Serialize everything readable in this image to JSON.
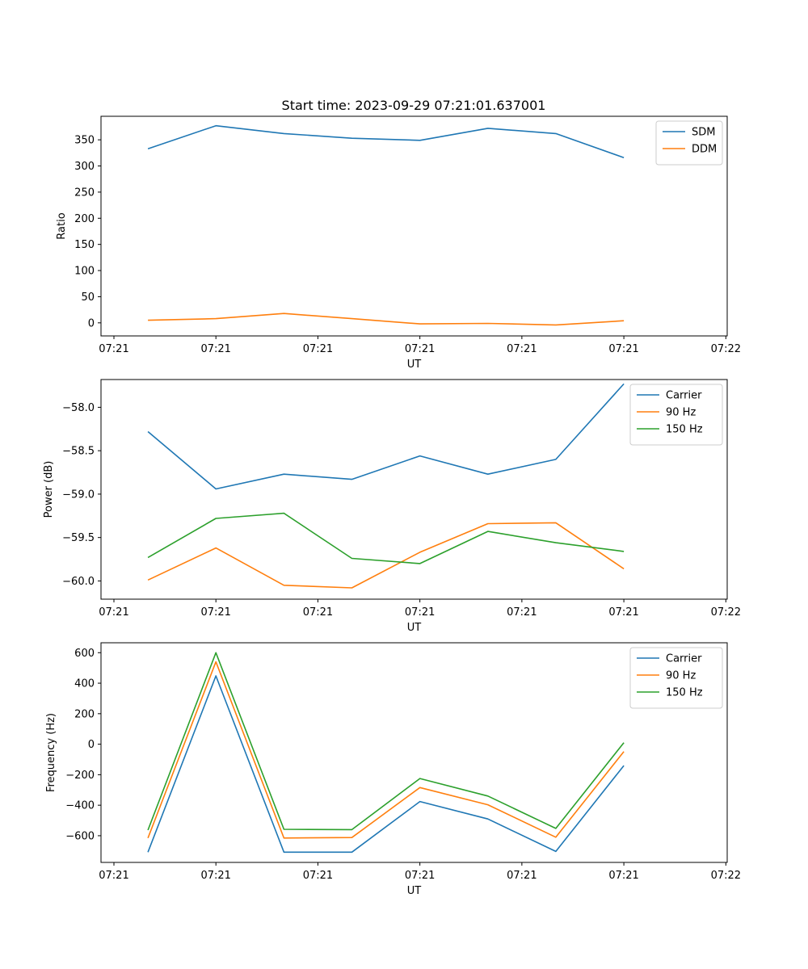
{
  "title": "Start time: 2023-09-29 07:21:01.637001",
  "chart_data": [
    {
      "type": "line",
      "xlabel": "UT",
      "ylabel": "Ratio",
      "x_ticks": [
        "07:21",
        "07:21",
        "07:21",
        "07:21",
        "07:21",
        "07:21",
        "07:22"
      ],
      "xlim": [
        -0.69,
        8.52
      ],
      "x": [
        0.0,
        1.0,
        2.0,
        3.0,
        4.0,
        5.0,
        6.0,
        7.0
      ],
      "ylim": [
        -25,
        395
      ],
      "y_ticks": [
        0,
        50,
        100,
        150,
        200,
        250,
        300,
        350
      ],
      "legend": "upper right",
      "series": [
        {
          "name": "SDM",
          "color": "#1f77b4",
          "values": [
            333,
            377,
            362,
            353,
            349,
            372,
            362,
            316
          ]
        },
        {
          "name": "DDM",
          "color": "#ff7f0e",
          "values": [
            5,
            8,
            18,
            8,
            -2,
            -1,
            -4,
            4
          ]
        }
      ]
    },
    {
      "type": "line",
      "xlabel": "UT",
      "ylabel": "Power (dB)",
      "x_ticks": [
        "07:21",
        "07:21",
        "07:21",
        "07:21",
        "07:21",
        "07:21",
        "07:22"
      ],
      "xlim": [
        -0.69,
        8.52
      ],
      "x": [
        0.0,
        1.0,
        2.0,
        3.0,
        4.0,
        5.0,
        6.0,
        7.0
      ],
      "ylim": [
        -60.21,
        -57.68
      ],
      "y_ticks": [
        -60.0,
        -59.5,
        -59.0,
        -58.5,
        -58.0
      ],
      "y_tick_labels": [
        "−60.0",
        "−59.5",
        "−59.0",
        "−58.5",
        "−58.0"
      ],
      "legend": "upper right",
      "series": [
        {
          "name": "Carrier",
          "color": "#1f77b4",
          "values": [
            -58.28,
            -58.94,
            -58.77,
            -58.83,
            -58.56,
            -58.77,
            -58.6,
            -57.73
          ]
        },
        {
          "name": "90 Hz",
          "color": "#ff7f0e",
          "values": [
            -59.99,
            -59.62,
            -60.05,
            -60.08,
            -59.67,
            -59.34,
            -59.33,
            -59.86
          ]
        },
        {
          "name": "150 Hz",
          "color": "#2ca02c",
          "values": [
            -59.73,
            -59.28,
            -59.22,
            -59.74,
            -59.8,
            -59.43,
            -59.56,
            -59.66
          ]
        }
      ]
    },
    {
      "type": "line",
      "xlabel": "UT",
      "ylabel": "Frequency (Hz)",
      "x_ticks": [
        "07:21",
        "07:21",
        "07:21",
        "07:21",
        "07:21",
        "07:21",
        "07:22"
      ],
      "xlim": [
        -0.69,
        8.52
      ],
      "x": [
        0.0,
        1.0,
        2.0,
        3.0,
        4.0,
        5.0,
        6.0,
        7.0
      ],
      "ylim": [
        -775,
        665
      ],
      "y_ticks": [
        -600,
        -400,
        -200,
        0,
        200,
        400,
        600
      ],
      "y_tick_labels": [
        "−600",
        "−400",
        "−200",
        "0",
        "200",
        "400",
        "600"
      ],
      "legend": "upper right",
      "series": [
        {
          "name": "Carrier",
          "color": "#1f77b4",
          "values": [
            -708,
            448,
            -708,
            -708,
            -376,
            -490,
            -703,
            -140
          ]
        },
        {
          "name": "90 Hz",
          "color": "#ff7f0e",
          "values": [
            -615,
            540,
            -615,
            -612,
            -284,
            -397,
            -610,
            -48
          ]
        },
        {
          "name": "150 Hz",
          "color": "#2ca02c",
          "values": [
            -563,
            600,
            -558,
            -560,
            -225,
            -340,
            -552,
            10
          ]
        }
      ]
    }
  ]
}
